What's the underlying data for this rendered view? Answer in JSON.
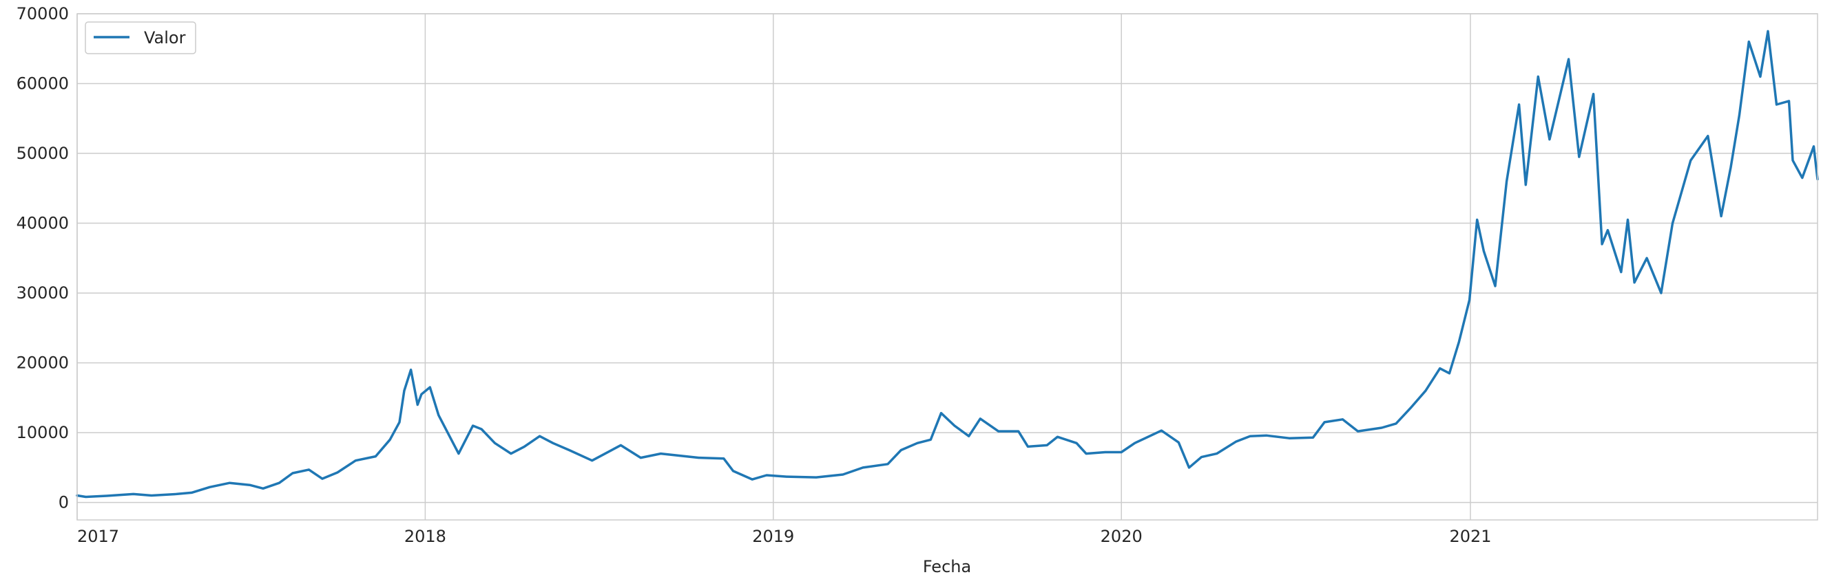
{
  "chart_data": {
    "type": "line",
    "xlabel": "Fecha",
    "ylabel": "",
    "xlim": [
      "2017-01-01",
      "2021-12-31"
    ],
    "ylim": [
      -2500,
      70000
    ],
    "xticks": [
      {
        "date": "2017-01-01",
        "label": "2017"
      },
      {
        "date": "2018-01-01",
        "label": "2018"
      },
      {
        "date": "2019-01-01",
        "label": "2019"
      },
      {
        "date": "2020-01-01",
        "label": "2020"
      },
      {
        "date": "2021-01-01",
        "label": "2021"
      }
    ],
    "yticks": [
      {
        "value": 0,
        "label": "0"
      },
      {
        "value": 10000,
        "label": "10000"
      },
      {
        "value": 20000,
        "label": "20000"
      },
      {
        "value": 30000,
        "label": "30000"
      },
      {
        "value": 40000,
        "label": "40000"
      },
      {
        "value": 50000,
        "label": "50000"
      },
      {
        "value": 60000,
        "label": "60000"
      },
      {
        "value": 70000,
        "label": "70000"
      }
    ],
    "grid": true,
    "legend_position": "top-left",
    "series": [
      {
        "name": "Valor",
        "color": "#1f77b4",
        "points": [
          [
            "2017-01-01",
            1000
          ],
          [
            "2017-01-10",
            800
          ],
          [
            "2017-02-01",
            950
          ],
          [
            "2017-03-01",
            1200
          ],
          [
            "2017-03-20",
            1000
          ],
          [
            "2017-04-15",
            1200
          ],
          [
            "2017-05-01",
            1400
          ],
          [
            "2017-05-20",
            2200
          ],
          [
            "2017-06-10",
            2800
          ],
          [
            "2017-07-01",
            2500
          ],
          [
            "2017-07-15",
            2000
          ],
          [
            "2017-08-01",
            2800
          ],
          [
            "2017-08-15",
            4200
          ],
          [
            "2017-09-01",
            4700
          ],
          [
            "2017-09-15",
            3400
          ],
          [
            "2017-10-01",
            4300
          ],
          [
            "2017-10-20",
            6000
          ],
          [
            "2017-11-10",
            6600
          ],
          [
            "2017-11-25",
            9000
          ],
          [
            "2017-12-05",
            11500
          ],
          [
            "2017-12-10",
            16000
          ],
          [
            "2017-12-17",
            19000
          ],
          [
            "2017-12-24",
            14000
          ],
          [
            "2017-12-28",
            15500
          ],
          [
            "2018-01-06",
            16500
          ],
          [
            "2018-01-15",
            12500
          ],
          [
            "2018-02-05",
            7000
          ],
          [
            "2018-02-20",
            11000
          ],
          [
            "2018-03-01",
            10500
          ],
          [
            "2018-03-15",
            8500
          ],
          [
            "2018-04-01",
            7000
          ],
          [
            "2018-04-15",
            8000
          ],
          [
            "2018-05-01",
            9500
          ],
          [
            "2018-05-15",
            8500
          ],
          [
            "2018-06-01",
            7500
          ],
          [
            "2018-06-25",
            6000
          ],
          [
            "2018-07-25",
            8200
          ],
          [
            "2018-08-15",
            6400
          ],
          [
            "2018-09-05",
            7000
          ],
          [
            "2018-10-15",
            6400
          ],
          [
            "2018-11-10",
            6300
          ],
          [
            "2018-11-20",
            4500
          ],
          [
            "2018-12-10",
            3300
          ],
          [
            "2018-12-25",
            3900
          ],
          [
            "2019-01-15",
            3700
          ],
          [
            "2019-02-15",
            3600
          ],
          [
            "2019-03-15",
            4000
          ],
          [
            "2019-04-05",
            5000
          ],
          [
            "2019-05-01",
            5500
          ],
          [
            "2019-05-15",
            7500
          ],
          [
            "2019-06-01",
            8500
          ],
          [
            "2019-06-15",
            9000
          ],
          [
            "2019-06-26",
            12800
          ],
          [
            "2019-07-10",
            11000
          ],
          [
            "2019-07-25",
            9500
          ],
          [
            "2019-08-06",
            12000
          ],
          [
            "2019-08-25",
            10200
          ],
          [
            "2019-09-15",
            10200
          ],
          [
            "2019-09-25",
            8000
          ],
          [
            "2019-10-15",
            8200
          ],
          [
            "2019-10-26",
            9400
          ],
          [
            "2019-11-15",
            8500
          ],
          [
            "2019-11-25",
            7000
          ],
          [
            "2019-12-15",
            7200
          ],
          [
            "2020-01-01",
            7200
          ],
          [
            "2020-01-15",
            8500
          ],
          [
            "2020-02-12",
            10300
          ],
          [
            "2020-03-01",
            8600
          ],
          [
            "2020-03-12",
            5000
          ],
          [
            "2020-03-25",
            6500
          ],
          [
            "2020-04-10",
            7000
          ],
          [
            "2020-04-30",
            8700
          ],
          [
            "2020-05-15",
            9500
          ],
          [
            "2020-06-01",
            9600
          ],
          [
            "2020-06-25",
            9200
          ],
          [
            "2020-07-20",
            9300
          ],
          [
            "2020-08-01",
            11500
          ],
          [
            "2020-08-20",
            11900
          ],
          [
            "2020-09-05",
            10200
          ],
          [
            "2020-09-30",
            10700
          ],
          [
            "2020-10-15",
            11300
          ],
          [
            "2020-10-30",
            13500
          ],
          [
            "2020-11-15",
            16000
          ],
          [
            "2020-11-30",
            19200
          ],
          [
            "2020-12-10",
            18500
          ],
          [
            "2020-12-20",
            23000
          ],
          [
            "2020-12-31",
            29000
          ],
          [
            "2021-01-08",
            40500
          ],
          [
            "2021-01-15",
            36000
          ],
          [
            "2021-01-27",
            31000
          ],
          [
            "2021-02-08",
            46000
          ],
          [
            "2021-02-21",
            57000
          ],
          [
            "2021-02-28",
            45500
          ],
          [
            "2021-03-13",
            61000
          ],
          [
            "2021-03-25",
            52000
          ],
          [
            "2021-04-14",
            63500
          ],
          [
            "2021-04-25",
            49500
          ],
          [
            "2021-05-10",
            58500
          ],
          [
            "2021-05-19",
            37000
          ],
          [
            "2021-05-25",
            39000
          ],
          [
            "2021-06-08",
            33000
          ],
          [
            "2021-06-15",
            40500
          ],
          [
            "2021-06-22",
            31500
          ],
          [
            "2021-07-05",
            35000
          ],
          [
            "2021-07-20",
            30000
          ],
          [
            "2021-08-01",
            40000
          ],
          [
            "2021-08-20",
            49000
          ],
          [
            "2021-09-07",
            52500
          ],
          [
            "2021-09-21",
            41000
          ],
          [
            "2021-10-01",
            48000
          ],
          [
            "2021-10-10",
            55500
          ],
          [
            "2021-10-20",
            66000
          ],
          [
            "2021-11-01",
            61000
          ],
          [
            "2021-11-09",
            67500
          ],
          [
            "2021-11-18",
            57000
          ],
          [
            "2021-12-01",
            57500
          ],
          [
            "2021-12-05",
            49000
          ],
          [
            "2021-12-15",
            46500
          ],
          [
            "2021-12-27",
            51000
          ],
          [
            "2021-12-31",
            46300
          ]
        ]
      }
    ]
  }
}
